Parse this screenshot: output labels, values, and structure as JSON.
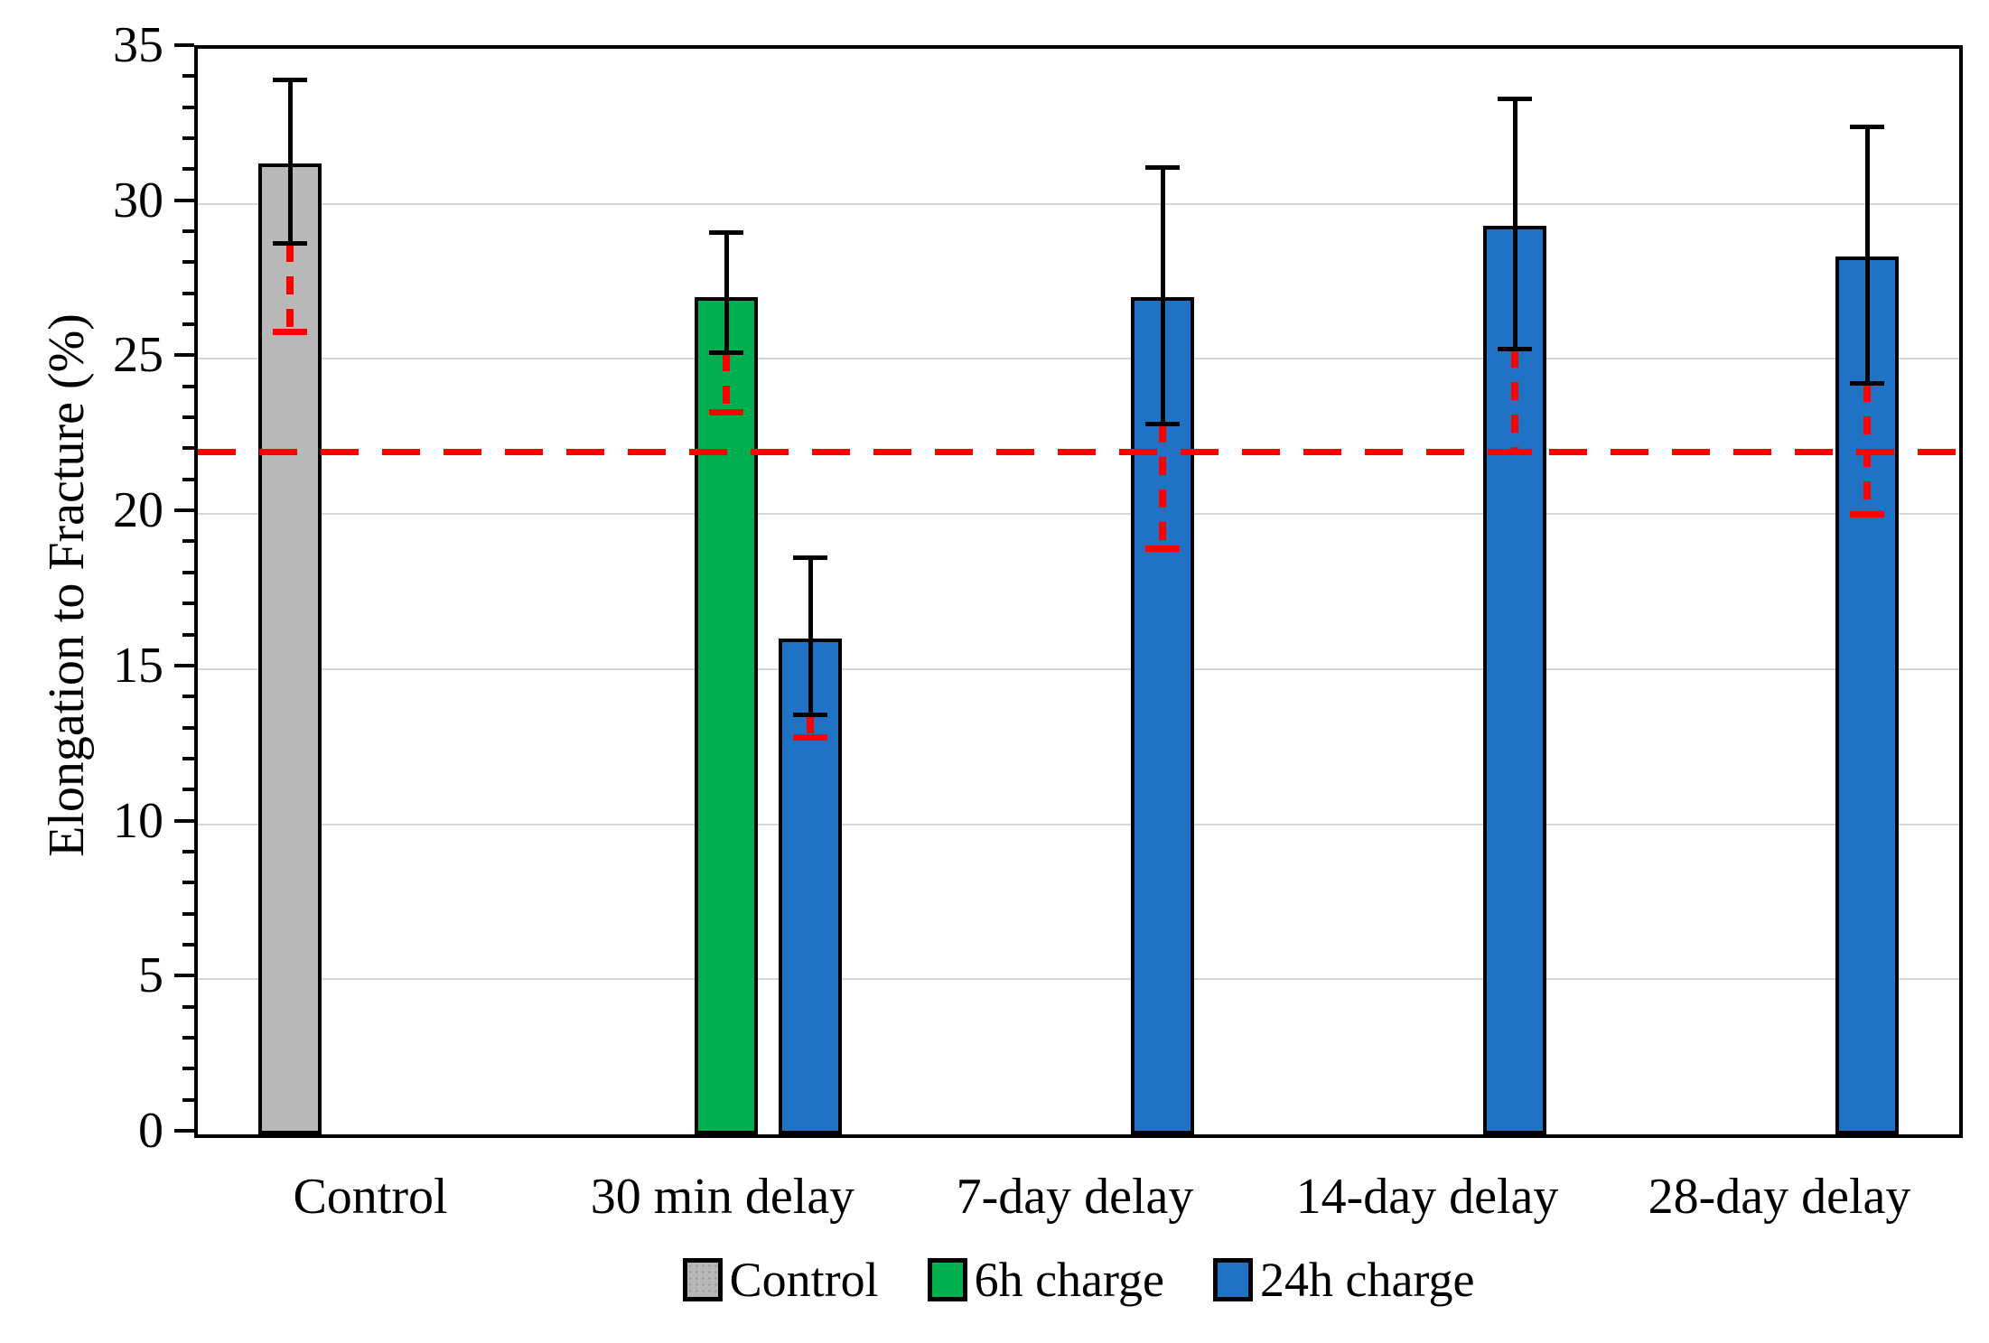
{
  "chart_data": {
    "type": "bar",
    "title": "",
    "xlabel": "",
    "ylabel": "Elongation to Fracture (%)",
    "ylim": [
      0,
      35
    ],
    "yticks": [
      0,
      5,
      10,
      15,
      20,
      25,
      30,
      35
    ],
    "minor_tick_step": 1,
    "grid": "horizontal-major",
    "legend_position": "bottom-center",
    "categories": [
      "Control",
      "30 min delay",
      "7-day delay",
      "14-day delay",
      "28-day delay"
    ],
    "series": [
      {
        "name": "Control",
        "color": "#b8b8b8",
        "textured": true,
        "values": [
          31.3,
          null,
          null,
          null,
          null
        ],
        "err_lo": [
          28.7,
          null,
          null,
          null,
          null
        ],
        "err_hi": [
          34.0,
          null,
          null,
          null,
          null
        ],
        "red_cap": [
          25.9,
          null,
          null,
          null,
          null
        ]
      },
      {
        "name": "6h charge",
        "color": "#00b050",
        "textured": false,
        "values": [
          null,
          27.0,
          null,
          null,
          null
        ],
        "err_lo": [
          null,
          25.2,
          null,
          null,
          null
        ],
        "err_hi": [
          null,
          29.1,
          null,
          null,
          null
        ],
        "red_cap": [
          null,
          23.3,
          null,
          null,
          null
        ]
      },
      {
        "name": "24h charge",
        "color": "#1f72c4",
        "textured": false,
        "values": [
          null,
          16.0,
          27.0,
          29.3,
          28.3
        ],
        "err_lo": [
          null,
          13.5,
          22.9,
          25.3,
          24.2
        ],
        "err_hi": [
          null,
          18.6,
          31.2,
          33.4,
          32.5
        ],
        "red_cap": [
          null,
          12.8,
          18.9,
          22.0,
          20.0
        ]
      }
    ],
    "ref_line": {
      "y": 22,
      "color": "#ff0000",
      "style": "dashed"
    },
    "legend": [
      {
        "label": "Control",
        "color": "#b8b8b8"
      },
      {
        "label": "6h charge",
        "color": "#00b050"
      },
      {
        "label": "24h charge",
        "color": "#1f72c4"
      }
    ]
  }
}
